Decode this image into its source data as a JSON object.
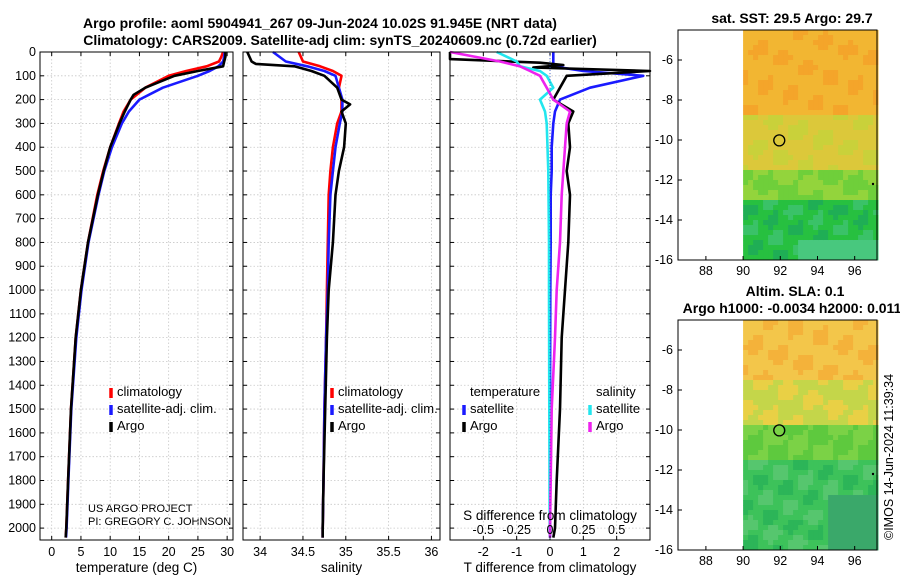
{
  "titles": {
    "line1": "Argo profile: aoml 5904941_267 09-Jun-2024 10.02S 91.945E (NRT data)",
    "line2": "Climatology: CARS2009. Satellite-adj clim: synTS_20240609.nc (0.72d earlier)",
    "sst_map": "sat. SST: 29.5 Argo: 29.7",
    "sla_line1": "Altim. SLA: 0.1",
    "sla_line2": "Argo h1000: -0.0034 h2000: 0.011"
  },
  "credit": {
    "line1": "US ARGO PROJECT",
    "line2": "PI: GREGORY C. JOHNSON",
    "stamp": "©IMOS 14-Jun-2024 11:39:34"
  },
  "colors": {
    "climatology": "#ff0000",
    "satellite": "#1a1aff",
    "argo": "#000000",
    "sal_satellite": "#22e6ee",
    "sal_argo": "#ee22ee",
    "grid": "#c8c8c8"
  },
  "chart_data": [
    {
      "id": "temperature",
      "type": "line",
      "xlabel": "temperature (deg C)",
      "ylabel": "",
      "xlim": [
        -2,
        31
      ],
      "ylim": [
        2050,
        0
      ],
      "xticks": [
        0,
        5,
        10,
        15,
        20,
        25,
        30
      ],
      "xtick_labels": [
        "0",
        "5",
        "10",
        "15",
        "20",
        "25",
        "30"
      ],
      "yticks": [
        0,
        100,
        200,
        300,
        400,
        500,
        600,
        700,
        800,
        900,
        1000,
        1100,
        1200,
        1300,
        1400,
        1500,
        1600,
        1700,
        1800,
        1900,
        2000
      ],
      "grid": true,
      "legend": [
        "climatology",
        "satellite-adj. clim.",
        "Argo"
      ],
      "series": [
        {
          "name": "climatology",
          "color": "#ff0000",
          "depth": [
            0,
            20,
            40,
            60,
            80,
            100,
            150,
            200,
            250,
            300,
            400,
            500,
            600,
            800,
            1000,
            1200,
            1500,
            1800,
            2000,
            2040
          ],
          "values": [
            29.3,
            29.0,
            28.6,
            26.5,
            23,
            20,
            16,
            13.5,
            12.3,
            11.5,
            10,
            8.8,
            7.8,
            6.2,
            5.0,
            4.1,
            3.3,
            2.8,
            2.5,
            2.4
          ]
        },
        {
          "name": "satellite-adj. clim.",
          "color": "#1a1aff",
          "depth": [
            0,
            20,
            40,
            60,
            80,
            100,
            150,
            200,
            250,
            300,
            400,
            500,
            600,
            800,
            1000,
            1200,
            1500,
            1800,
            2000,
            2040
          ],
          "values": [
            29.6,
            29.5,
            29.3,
            28.5,
            27,
            25,
            19,
            15,
            13.2,
            12,
            10.3,
            9,
            8,
            6.3,
            5.1,
            4.2,
            3.35,
            2.85,
            2.55,
            2.45
          ]
        },
        {
          "name": "Argo",
          "color": "#000000",
          "depth": [
            0,
            20,
            40,
            60,
            80,
            100,
            120,
            150,
            180,
            200,
            250,
            300,
            400,
            500,
            600,
            800,
            1000,
            1200,
            1500,
            1800,
            2000,
            2040
          ],
          "values": [
            29.7,
            29.7,
            29.5,
            29.3,
            25,
            21,
            19,
            16,
            14,
            13.5,
            12.5,
            11.6,
            10,
            8.9,
            7.9,
            6.2,
            5.0,
            4.1,
            3.3,
            2.8,
            2.5,
            2.4
          ]
        }
      ]
    },
    {
      "id": "salinity",
      "type": "line",
      "xlabel": "salinity",
      "ylabel": "",
      "xlim": [
        33.8,
        36.1
      ],
      "ylim": [
        2050,
        0
      ],
      "xticks": [
        34,
        34.5,
        35,
        35.5,
        36
      ],
      "xtick_labels": [
        "34",
        "34.5",
        "35",
        "35.5",
        "36"
      ],
      "grid": true,
      "legend": [
        "climatology",
        "satellite-adj. clim.",
        "Argo"
      ],
      "series": [
        {
          "name": "climatology",
          "color": "#ff0000",
          "depth": [
            0,
            40,
            60,
            80,
            100,
            150,
            200,
            250,
            300,
            400,
            500,
            600,
            800,
            1000,
            1200,
            1500,
            1800,
            2000,
            2040
          ],
          "values": [
            34.45,
            34.5,
            34.7,
            34.85,
            34.95,
            34.92,
            34.95,
            34.95,
            34.9,
            34.85,
            34.82,
            34.8,
            34.79,
            34.78,
            34.77,
            34.75,
            34.74,
            34.73,
            34.73
          ]
        },
        {
          "name": "satellite-adj. clim.",
          "color": "#1a1aff",
          "depth": [
            0,
            40,
            60,
            80,
            100,
            150,
            200,
            250,
            300,
            400,
            500,
            600,
            800,
            1000,
            1200,
            1500,
            1800,
            2000,
            2040
          ],
          "values": [
            34.15,
            34.3,
            34.55,
            34.75,
            34.88,
            34.92,
            34.96,
            34.96,
            34.93,
            34.88,
            34.85,
            34.82,
            34.8,
            34.79,
            34.77,
            34.75,
            34.74,
            34.73,
            34.73
          ]
        },
        {
          "name": "Argo",
          "color": "#000000",
          "depth": [
            0,
            40,
            50,
            60,
            80,
            100,
            150,
            200,
            220,
            250,
            300,
            400,
            500,
            600,
            800,
            1000,
            1200,
            1500,
            1800,
            2000,
            2040
          ],
          "values": [
            33.85,
            33.9,
            33.95,
            34.4,
            34.6,
            34.75,
            34.9,
            34.95,
            35.05,
            34.95,
            35.0,
            34.98,
            34.92,
            34.88,
            34.85,
            34.8,
            34.78,
            34.76,
            34.74,
            34.73,
            34.73
          ]
        }
      ]
    },
    {
      "id": "difference",
      "type": "line",
      "xlabel": "T difference from climatology",
      "xlabel_top": "S difference from climatology",
      "ylabel": "",
      "xlim": [
        -3,
        3
      ],
      "ylim": [
        2050,
        0
      ],
      "xticks": [
        -2,
        -1,
        0,
        1,
        2
      ],
      "xtick_labels": [
        "-2",
        "-1",
        "0",
        "1",
        "2"
      ],
      "sticks": [
        -0.5,
        -0.25,
        0,
        0.25,
        0.5
      ],
      "stick_labels": [
        "-0.5",
        "-0.25",
        "0",
        "0.25",
        "0.5"
      ],
      "grid": true,
      "legend_headers": [
        "temperature",
        "salinity"
      ],
      "legend_t": [
        "satellite",
        "Argo"
      ],
      "legend_s": [
        "satellite",
        "Argo"
      ],
      "series": [
        {
          "name": "T satellite",
          "color": "#1a1aff",
          "depth": [
            0,
            40,
            60,
            80,
            100,
            150,
            200,
            250,
            300,
            400,
            500,
            600,
            800,
            1000,
            1500,
            2000,
            2040
          ],
          "values": [
            0.1,
            0.1,
            0.1,
            1.0,
            2.8,
            1.2,
            0.3,
            0.15,
            0.1,
            0.05,
            0.05,
            0.02,
            0.02,
            0.01,
            0.0,
            0.0,
            0.0
          ]
        },
        {
          "name": "T Argo",
          "color": "#000000",
          "depth": [
            0,
            30,
            45,
            55,
            65,
            80,
            100,
            150,
            200,
            250,
            300,
            400,
            500,
            600,
            800,
            1000,
            1200,
            1500,
            1800,
            2000,
            2040
          ],
          "values": [
            -3,
            -3,
            -0.3,
            0.4,
            -0.5,
            3.0,
            0.5,
            0.3,
            0.1,
            0.7,
            0.55,
            0.6,
            0.5,
            0.6,
            0.55,
            0.45,
            0.35,
            0.3,
            0.2,
            0.15,
            0.1
          ]
        },
        {
          "name": "S satellite",
          "color": "#22e6ee",
          "depth": [
            0,
            40,
            60,
            80,
            100,
            150,
            200,
            250,
            300,
            500,
            800,
            1000,
            1500,
            2000,
            2040
          ],
          "values": [
            -1.6,
            -1.0,
            -0.9,
            -0.3,
            -0.1,
            0.1,
            -0.3,
            -0.15,
            -0.1,
            -0.05,
            -0.03,
            -0.03,
            -0.02,
            -0.01,
            0.0
          ]
        },
        {
          "name": "S Argo",
          "color": "#ee22ee",
          "depth": [
            0,
            40,
            60,
            80,
            100,
            150,
            200,
            250,
            300,
            400,
            600,
            800,
            1000,
            1200,
            1500,
            1800,
            2000,
            2040
          ],
          "values": [
            -3,
            -1.5,
            -0.9,
            -0.6,
            -0.3,
            -0.1,
            0.1,
            0.6,
            0.5,
            0.45,
            0.35,
            0.3,
            0.2,
            0.15,
            0.05,
            0.02,
            0.0,
            0.0
          ]
        }
      ]
    },
    {
      "id": "sst_map",
      "type": "heatmap",
      "title": "sat. SST: 29.5 Argo: 29.7",
      "xlim": [
        86.5,
        97.2
      ],
      "ylim": [
        -16,
        -4.5
      ],
      "xticks": [
        88,
        90,
        92,
        94,
        96
      ],
      "yticks": [
        -6,
        -8,
        -10,
        -12,
        -14,
        -16
      ],
      "data_extent_lon": [
        90,
        97.2
      ],
      "marker": {
        "lon": 91.945,
        "lat": -10.02
      }
    },
    {
      "id": "sla_map",
      "type": "heatmap",
      "title": "Altim. SLA: 0.1",
      "xlim": [
        86.5,
        97.2
      ],
      "ylim": [
        -16,
        -4.5
      ],
      "xticks": [
        88,
        90,
        92,
        94,
        96
      ],
      "yticks": [
        -6,
        -8,
        -10,
        -12,
        -14,
        -16
      ],
      "data_extent_lon": [
        90,
        97.2
      ],
      "marker": {
        "lon": 91.945,
        "lat": -10.02
      }
    }
  ]
}
